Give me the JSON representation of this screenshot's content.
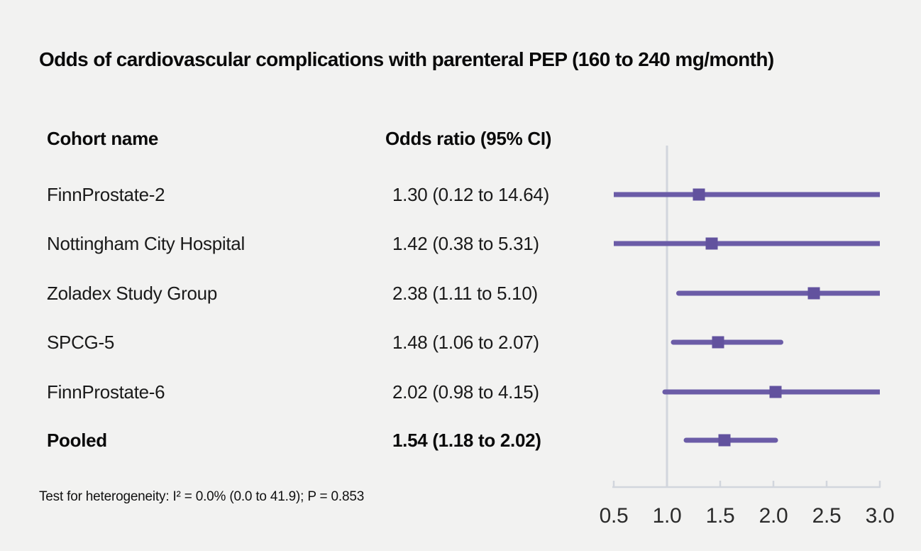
{
  "title": "Odds of cardiovascular complications with parenteral PEP (160 to 240 mg/month)",
  "columns": {
    "cohort": "Cohort name",
    "or": "Odds ratio (95% CI)"
  },
  "footnote": "Test for heterogeneity: I² = 0.0% (0.0 to 41.9); P = 0.853",
  "colors": {
    "background": "#f2f2f1",
    "ci_line": "#6b5ca7",
    "marker": "#62529e",
    "axis": "#d2d6dd",
    "tick_label": "#2b2b2b",
    "text": "#1a1a1a"
  },
  "chart_data": {
    "type": "forest",
    "title": "Odds of cardiovascular complications with parenteral PEP (160 to 240 mg/month)",
    "xlabel": "Odds ratio",
    "axis": {
      "min": 0.5,
      "max": 3.0,
      "ticks": [
        0.5,
        1.0,
        1.5,
        2.0,
        2.5,
        3.0
      ],
      "tick_labels": [
        "0.5",
        "1.0",
        "1.5",
        "2.0",
        "2.5",
        "3.0"
      ],
      "reference_line": 1.0,
      "scale": "linear"
    },
    "rows": [
      {
        "label": "FinnProstate-2",
        "display": "1.30 (0.12 to 14.64)",
        "or": 1.3,
        "lo": 0.12,
        "hi": 14.64,
        "bold": false
      },
      {
        "label": "Nottingham City Hospital",
        "display": "1.42 (0.38 to 5.31)",
        "or": 1.42,
        "lo": 0.38,
        "hi": 5.31,
        "bold": false
      },
      {
        "label": "Zoladex Study Group",
        "display": "2.38 (1.11 to 5.10)",
        "or": 2.38,
        "lo": 1.11,
        "hi": 5.1,
        "bold": false
      },
      {
        "label": "SPCG-5",
        "display": "1.48 (1.06 to 2.07)",
        "or": 1.48,
        "lo": 1.06,
        "hi": 2.07,
        "bold": false
      },
      {
        "label": "FinnProstate-6",
        "display": "2.02 (0.98 to 4.15)",
        "or": 2.02,
        "lo": 0.98,
        "hi": 4.15,
        "bold": false
      },
      {
        "label": "Pooled",
        "display": "1.54 (1.18 to 2.02)",
        "or": 1.54,
        "lo": 1.18,
        "hi": 2.02,
        "bold": true
      }
    ]
  }
}
